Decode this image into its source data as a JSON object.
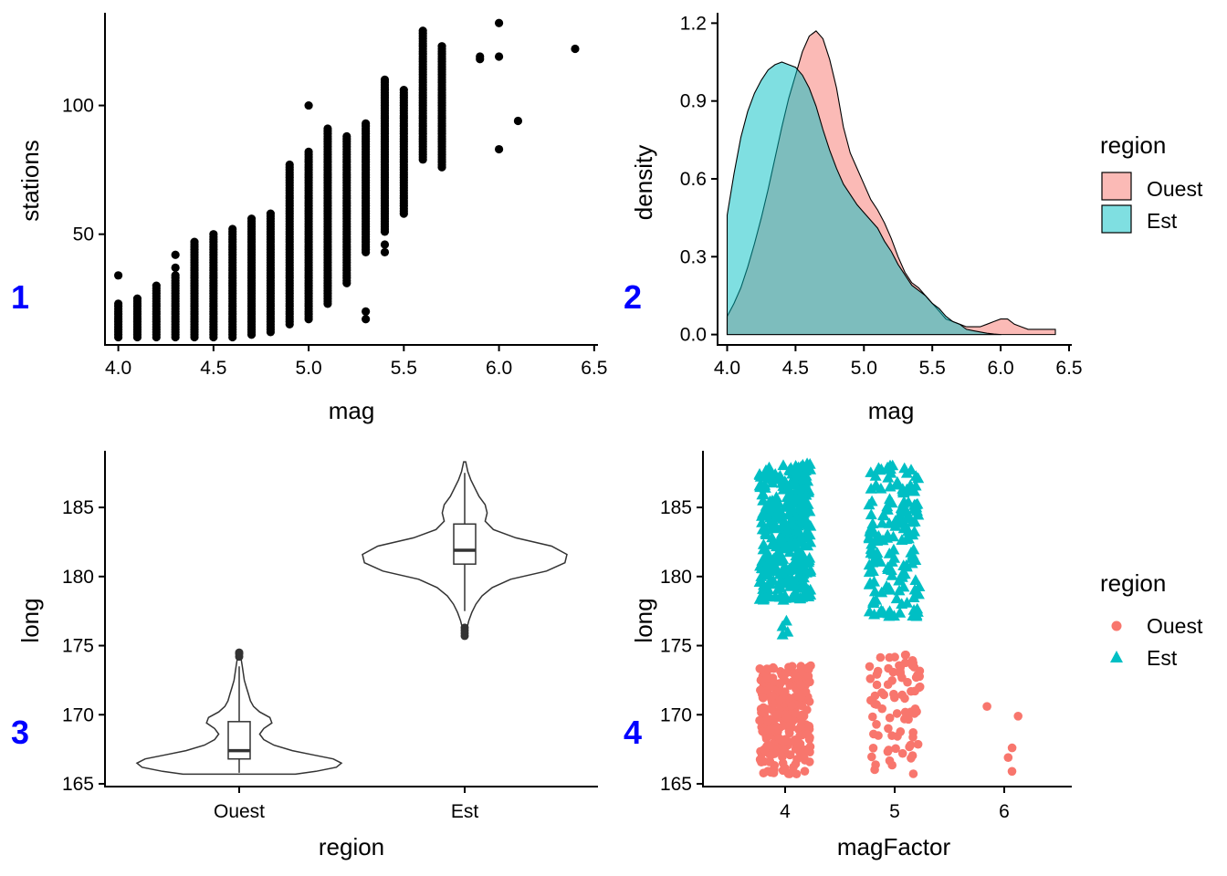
{
  "colors": {
    "ouest": "#F8766D",
    "est": "#00BFC4",
    "panel_tag": "#0000FF",
    "ink": "#000000"
  },
  "chart_data": [
    {
      "panel": "1",
      "type": "scatter",
      "xlabel": "mag",
      "ylabel": "stations",
      "xlim": [
        3.93,
        6.52
      ],
      "ylim": [
        7,
        136
      ],
      "xticks": [
        "4.0",
        "4.5",
        "5.0",
        "5.5",
        "6.0",
        "6.5"
      ],
      "yticks": [
        "50",
        "100"
      ],
      "grid": false,
      "columns": [
        {
          "x": 4.0,
          "ymin": 10,
          "ymax": 23,
          "extra": [
            34
          ]
        },
        {
          "x": 4.1,
          "ymin": 10,
          "ymax": 25,
          "extra": []
        },
        {
          "x": 4.2,
          "ymin": 10,
          "ymax": 30,
          "extra": []
        },
        {
          "x": 4.3,
          "ymin": 10,
          "ymax": 34,
          "extra": [
            37,
            42
          ]
        },
        {
          "x": 4.4,
          "ymin": 10,
          "ymax": 47,
          "extra": []
        },
        {
          "x": 4.5,
          "ymin": 10,
          "ymax": 50,
          "extra": []
        },
        {
          "x": 4.6,
          "ymin": 10,
          "ymax": 52,
          "extra": []
        },
        {
          "x": 4.7,
          "ymin": 11,
          "ymax": 56,
          "extra": []
        },
        {
          "x": 4.8,
          "ymin": 12,
          "ymax": 58,
          "extra": []
        },
        {
          "x": 4.9,
          "ymin": 15,
          "ymax": 77,
          "extra": []
        },
        {
          "x": 5.0,
          "ymin": 17,
          "ymax": 82,
          "extra": [
            100
          ]
        },
        {
          "x": 5.1,
          "ymin": 23,
          "ymax": 91,
          "extra": []
        },
        {
          "x": 5.2,
          "ymin": 31,
          "ymax": 88,
          "extra": []
        },
        {
          "x": 5.3,
          "ymin": 43,
          "ymax": 93,
          "extra": [
            17,
            20
          ]
        },
        {
          "x": 5.4,
          "ymin": 51,
          "ymax": 110,
          "extra": [
            43,
            46
          ]
        },
        {
          "x": 5.5,
          "ymin": 58,
          "ymax": 106,
          "extra": []
        },
        {
          "x": 5.6,
          "ymin": 79,
          "ymax": 129,
          "extra": []
        },
        {
          "x": 5.7,
          "ymin": 76,
          "ymax": 123,
          "extra": []
        }
      ],
      "points": [
        {
          "x": 5.9,
          "y": 118
        },
        {
          "x": 5.9,
          "y": 119
        },
        {
          "x": 6.0,
          "y": 132
        },
        {
          "x": 6.0,
          "y": 119
        },
        {
          "x": 6.0,
          "y": 83
        },
        {
          "x": 6.1,
          "y": 94
        },
        {
          "x": 6.4,
          "y": 122
        }
      ]
    },
    {
      "panel": "2",
      "type": "area",
      "xlabel": "mag",
      "ylabel": "density",
      "xlim": [
        3.93,
        6.52
      ],
      "ylim": [
        -0.04,
        1.24
      ],
      "xticks": [
        "4.0",
        "4.5",
        "5.0",
        "5.5",
        "6.0",
        "6.5"
      ],
      "yticks": [
        "0.0",
        "0.3",
        "0.6",
        "0.9",
        "1.2"
      ],
      "grid": false,
      "legend": {
        "title": "region",
        "position": "right",
        "entries": [
          "Ouest",
          "Est"
        ]
      },
      "series": [
        {
          "name": "Ouest",
          "x": [
            4.0,
            4.05,
            4.1,
            4.15,
            4.2,
            4.25,
            4.3,
            4.35,
            4.4,
            4.45,
            4.5,
            4.55,
            4.6,
            4.65,
            4.7,
            4.75,
            4.8,
            4.85,
            4.9,
            4.95,
            5.0,
            5.05,
            5.1,
            5.15,
            5.2,
            5.25,
            5.3,
            5.35,
            5.4,
            5.45,
            5.5,
            5.55,
            5.6,
            5.65,
            5.7,
            5.75,
            5.8,
            5.85,
            5.9,
            5.95,
            6.0,
            6.05,
            6.1,
            6.15,
            6.2,
            6.25,
            6.3,
            6.35,
            6.4
          ],
          "values": [
            0.07,
            0.12,
            0.18,
            0.26,
            0.35,
            0.45,
            0.56,
            0.68,
            0.8,
            0.91,
            1.0,
            1.09,
            1.15,
            1.17,
            1.14,
            1.06,
            0.95,
            0.8,
            0.7,
            0.64,
            0.58,
            0.52,
            0.48,
            0.43,
            0.37,
            0.3,
            0.24,
            0.2,
            0.18,
            0.15,
            0.12,
            0.09,
            0.06,
            0.05,
            0.04,
            0.03,
            0.03,
            0.03,
            0.04,
            0.05,
            0.06,
            0.06,
            0.04,
            0.03,
            0.02,
            0.02,
            0.02,
            0.02,
            0.02
          ]
        },
        {
          "name": "Est",
          "x": [
            4.0,
            4.05,
            4.1,
            4.15,
            4.2,
            4.25,
            4.3,
            4.35,
            4.4,
            4.45,
            4.5,
            4.55,
            4.6,
            4.65,
            4.7,
            4.75,
            4.8,
            4.85,
            4.9,
            4.95,
            5.0,
            5.05,
            5.1,
            5.15,
            5.2,
            5.25,
            5.3,
            5.35,
            5.4,
            5.45,
            5.5,
            5.55,
            5.6,
            5.65,
            5.7,
            5.75,
            5.8,
            5.85,
            5.9,
            5.95,
            6.0
          ],
          "values": [
            0.46,
            0.62,
            0.76,
            0.86,
            0.93,
            0.98,
            1.02,
            1.04,
            1.05,
            1.04,
            1.03,
            1.0,
            0.95,
            0.88,
            0.79,
            0.71,
            0.64,
            0.58,
            0.54,
            0.5,
            0.47,
            0.44,
            0.41,
            0.36,
            0.32,
            0.27,
            0.23,
            0.19,
            0.17,
            0.15,
            0.12,
            0.1,
            0.07,
            0.05,
            0.04,
            0.02,
            0.015,
            0.01,
            0.005,
            0.002,
            0.0
          ]
        }
      ]
    },
    {
      "panel": "3",
      "type": "violin",
      "xlabel": "region",
      "ylabel": "long",
      "categories": [
        "Ouest",
        "Est"
      ],
      "ylim": [
        164.8,
        189.1
      ],
      "yticks": [
        "165",
        "170",
        "175",
        "180",
        "185"
      ],
      "grid": false,
      "violins": [
        {
          "category": "Ouest",
          "min": 165.7,
          "max": 174.5,
          "q1": 166.8,
          "median": 167.4,
          "q3": 169.5,
          "whisker_low": 165.8,
          "whisker_high": 173.5,
          "outliers": [
            174.2,
            174.4,
            174.5
          ],
          "profile_y": [
            165.7,
            165.9,
            166.2,
            166.5,
            166.8,
            167.1,
            167.4,
            167.8,
            168.2,
            168.6,
            169.0,
            169.4,
            169.8,
            170.2,
            170.6,
            171.0,
            171.5,
            172.0,
            172.5,
            173.0,
            173.5,
            174.0,
            174.5
          ],
          "profile_w": [
            0.55,
            0.75,
            0.95,
            1.0,
            0.92,
            0.72,
            0.52,
            0.34,
            0.24,
            0.2,
            0.24,
            0.32,
            0.3,
            0.2,
            0.14,
            0.11,
            0.09,
            0.07,
            0.05,
            0.04,
            0.03,
            0.02,
            0.01
          ]
        },
        {
          "category": "Est",
          "min": 175.7,
          "max": 188.3,
          "q1": 180.9,
          "median": 181.9,
          "q3": 183.8,
          "whisker_low": 177.5,
          "whisker_high": 187.5,
          "outliers": [
            175.7,
            175.9,
            176.1,
            176.3
          ],
          "profile_y": [
            175.7,
            176.2,
            176.8,
            177.4,
            178.0,
            178.6,
            179.2,
            179.8,
            180.4,
            181.0,
            181.6,
            182.2,
            182.8,
            183.4,
            184.0,
            184.6,
            185.2,
            185.8,
            186.4,
            187.0,
            187.6,
            188.3
          ],
          "profile_w": [
            0.01,
            0.02,
            0.04,
            0.07,
            0.11,
            0.17,
            0.27,
            0.45,
            0.8,
            0.98,
            1.0,
            0.85,
            0.5,
            0.28,
            0.2,
            0.22,
            0.2,
            0.14,
            0.1,
            0.06,
            0.03,
            0.01
          ]
        }
      ]
    },
    {
      "panel": "4",
      "type": "scatter",
      "xlabel": "magFactor",
      "ylabel": "long",
      "categories": [
        "4",
        "5",
        "6"
      ],
      "ylim": [
        164.8,
        189.1
      ],
      "yticks": [
        "165",
        "170",
        "175",
        "180",
        "185"
      ],
      "grid": false,
      "legend": {
        "title": "region",
        "position": "right",
        "entries": [
          "Ouest",
          "Est"
        ]
      },
      "groups": [
        {
          "region": "Est",
          "category": "4",
          "ymin": 178.3,
          "ymax": 188.2,
          "count": 360,
          "extra": [
            176.8,
            176.4,
            176.0,
            175.8
          ]
        },
        {
          "region": "Est",
          "category": "5",
          "ymin": 177.0,
          "ymax": 188.2,
          "count": 170,
          "extra": []
        },
        {
          "region": "Ouest",
          "category": "4",
          "ymin": 165.7,
          "ymax": 173.6,
          "count": 260,
          "extra": []
        },
        {
          "region": "Ouest",
          "category": "5",
          "ymin": 165.7,
          "ymax": 174.5,
          "count": 80,
          "extra": []
        },
        {
          "region": "Ouest",
          "category": "6",
          "points": [
            165.9,
            166.9,
            167.6,
            169.9,
            170.6
          ]
        }
      ]
    }
  ],
  "panel_tags": [
    "1",
    "2",
    "3",
    "4"
  ]
}
